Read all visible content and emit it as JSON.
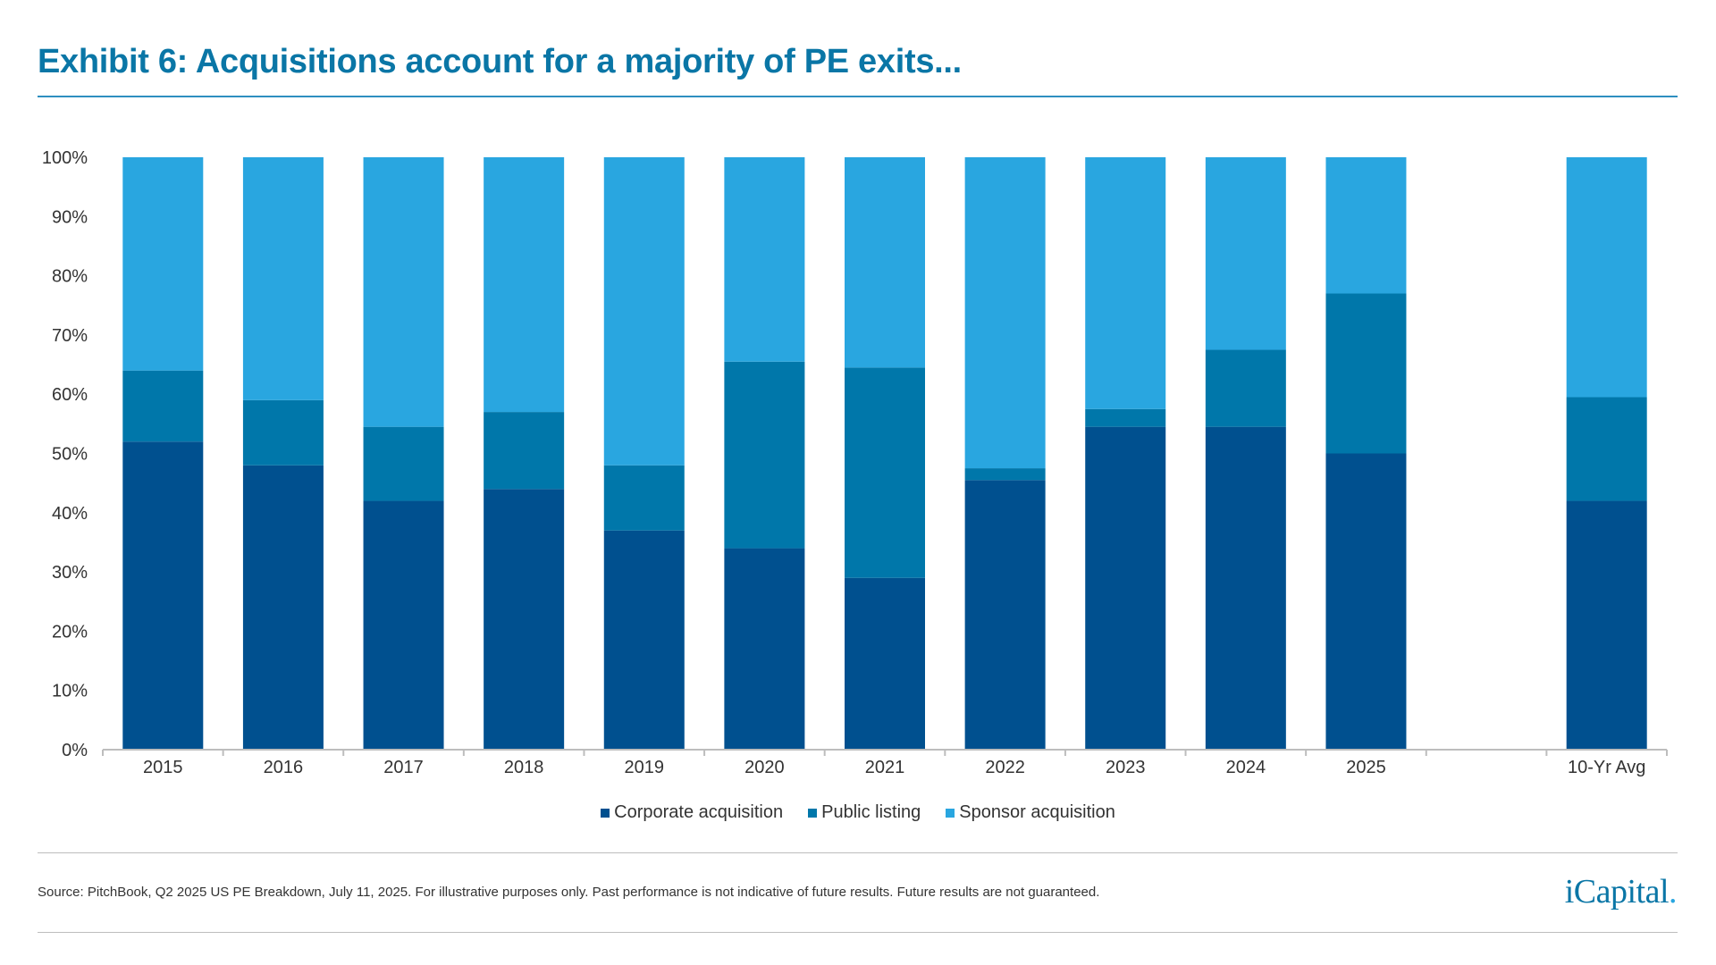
{
  "header": {
    "title": "Exhibit 6: Acquisitions account for a majority of PE exits..."
  },
  "footer": {
    "source": "Source: PitchBook, Q2 2025 US PE Breakdown, July 11, 2025. For illustrative purposes only. Past performance is not indicative of future results. Future results are not guaranteed.",
    "logo": "iCapital."
  },
  "chart_data": {
    "type": "bar",
    "stacked": true,
    "percent_stacked": true,
    "title": "",
    "xlabel": "",
    "ylabel": "",
    "ylim": [
      0,
      100
    ],
    "yticks": [
      "0%",
      "10%",
      "20%",
      "30%",
      "40%",
      "50%",
      "60%",
      "70%",
      "80%",
      "90%",
      "100%"
    ],
    "categories": [
      "2015",
      "2016",
      "2017",
      "2018",
      "2019",
      "2020",
      "2021",
      "2022",
      "2023",
      "2024",
      "2025",
      "",
      "10-Yr Avg"
    ],
    "series": [
      {
        "name": "Corporate acquisition",
        "color": "#00508F",
        "values": [
          52,
          48,
          42,
          44,
          37,
          34,
          29,
          45.5,
          54.5,
          54.5,
          50,
          null,
          42
        ]
      },
      {
        "name": "Public listing",
        "color": "#0077AA",
        "values": [
          12,
          11,
          12.5,
          13,
          11,
          31.5,
          35.5,
          2,
          3,
          13,
          27,
          null,
          17.5
        ]
      },
      {
        "name": "Sponsor acquisition",
        "color": "#29A6E0",
        "values": [
          36,
          41,
          45.5,
          43,
          52,
          34.5,
          35.5,
          52.5,
          42.5,
          32.5,
          23,
          null,
          40.5
        ]
      }
    ],
    "grid": false,
    "legend_position": "bottom"
  }
}
